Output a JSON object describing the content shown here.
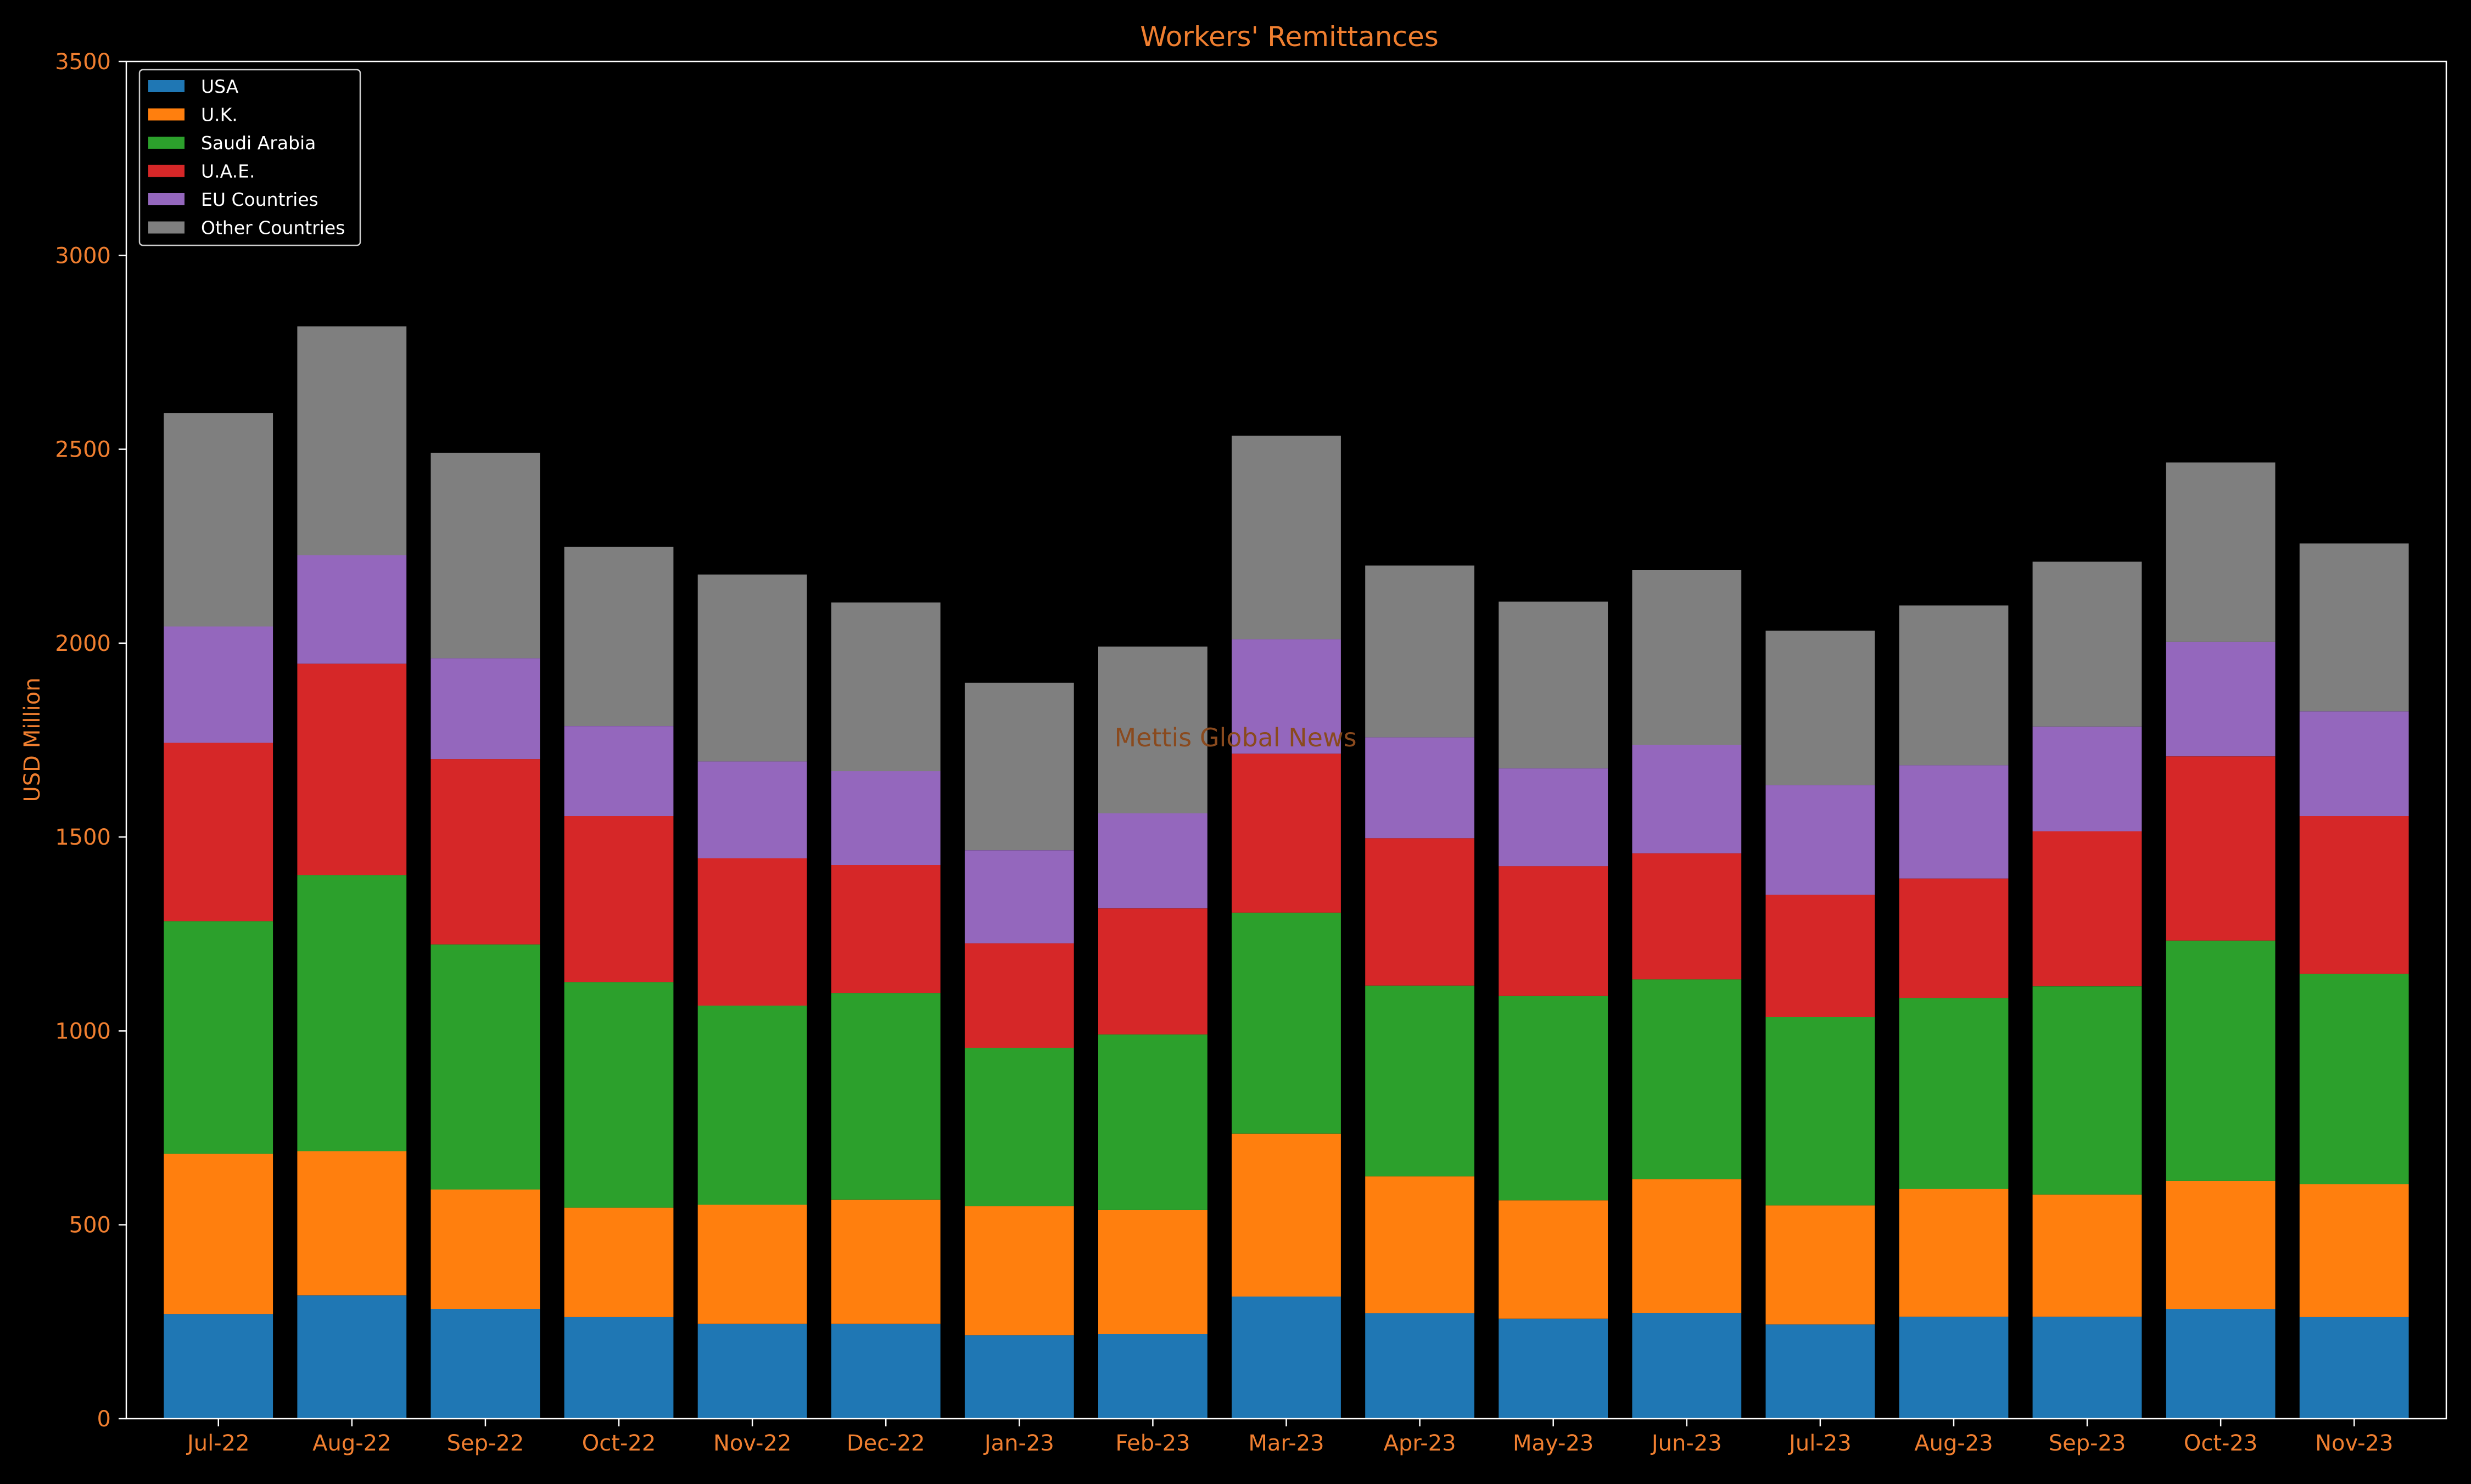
{
  "colors": {
    "background": "#000000",
    "axis_text": "#f07f30",
    "spine": "#ffffff",
    "legend_text": "#ffffff",
    "legend_border": "#cccccc",
    "watermark": "#8a4a1e"
  },
  "watermark": "Mettis Global News",
  "chart_data": {
    "type": "bar",
    "stacked": true,
    "title": "Workers' Remittances",
    "xlabel": "",
    "ylabel": "USD Million",
    "ylim": [
      0,
      3500
    ],
    "yticks": [
      0,
      500,
      1000,
      1500,
      2000,
      2500,
      3000,
      3500
    ],
    "legend_position": "upper-left",
    "grid": false,
    "categories": [
      "Jul-22",
      "Aug-22",
      "Sep-22",
      "Oct-22",
      "Nov-22",
      "Dec-22",
      "Jan-23",
      "Feb-23",
      "Mar-23",
      "Apr-23",
      "May-23",
      "Jun-23",
      "Jul-23",
      "Aug-23",
      "Sep-23",
      "Oct-23",
      "Nov-23"
    ],
    "series": [
      {
        "name": "USA",
        "color": "#1f77b4",
        "values": [
          270,
          318,
          283,
          262,
          245,
          245,
          215,
          218,
          315,
          272,
          258,
          273,
          243,
          263,
          263,
          283,
          262
        ]
      },
      {
        "name": "U.K.",
        "color": "#ff7f0e",
        "values": [
          413,
          372,
          308,
          282,
          307,
          320,
          333,
          320,
          420,
          353,
          305,
          345,
          307,
          330,
          315,
          330,
          343
        ]
      },
      {
        "name": "Saudi Arabia",
        "color": "#2ca02c",
        "values": [
          600,
          712,
          632,
          582,
          513,
          533,
          408,
          453,
          570,
          492,
          527,
          515,
          486,
          492,
          537,
          620,
          542
        ]
      },
      {
        "name": "U.A.E.",
        "color": "#d62728",
        "values": [
          460,
          545,
          478,
          428,
          380,
          330,
          270,
          325,
          410,
          380,
          335,
          325,
          315,
          308,
          400,
          475,
          407
        ]
      },
      {
        "name": "EU Countries",
        "color": "#9467bd",
        "values": [
          300,
          280,
          260,
          232,
          250,
          242,
          240,
          245,
          295,
          260,
          252,
          280,
          283,
          292,
          270,
          295,
          270
        ]
      },
      {
        "name": "Other Countries",
        "color": "#7f7f7f",
        "values": [
          550,
          590,
          530,
          462,
          482,
          435,
          432,
          430,
          525,
          443,
          430,
          450,
          398,
          412,
          425,
          463,
          433
        ]
      }
    ]
  }
}
